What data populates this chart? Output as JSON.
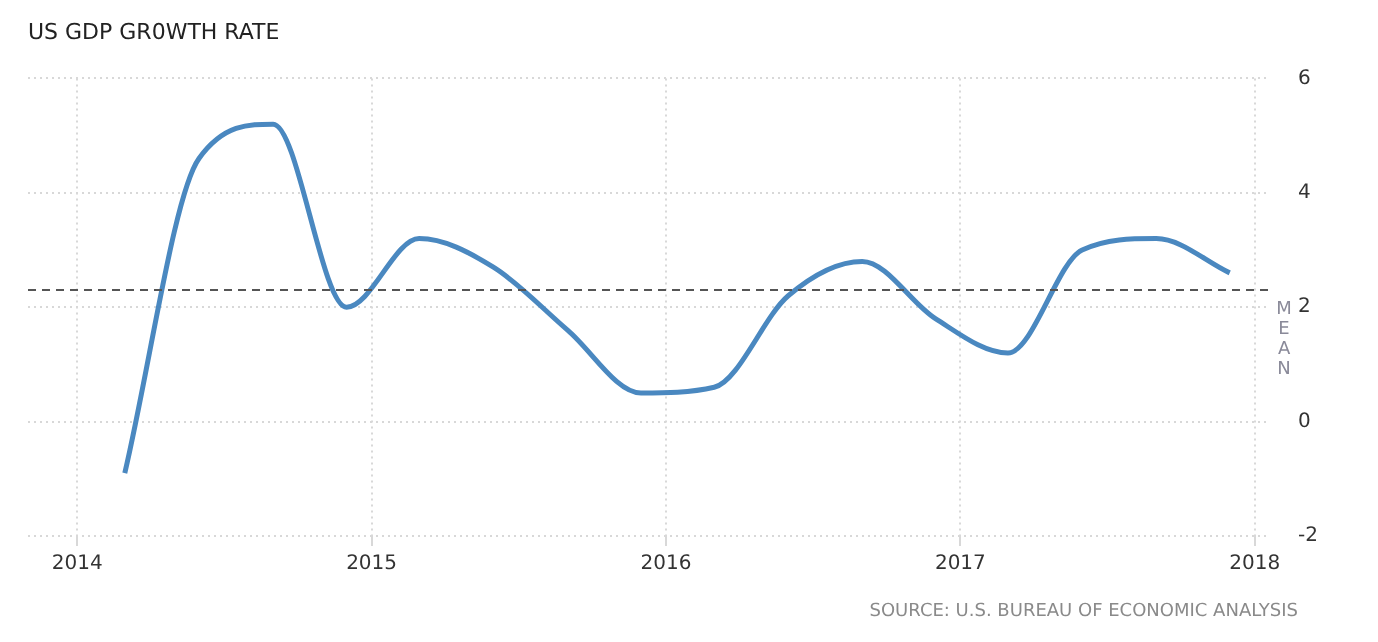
{
  "chart_data": {
    "type": "line",
    "title": "US GDP GR0WTH RATE",
    "x": [
      "2014-03-01",
      "2014-06-01",
      "2014-09-01",
      "2014-12-01",
      "2015-03-01",
      "2015-06-01",
      "2015-09-01",
      "2015-12-01",
      "2016-03-01",
      "2016-06-01",
      "2016-09-01",
      "2016-12-01",
      "2017-03-01",
      "2017-06-01",
      "2017-09-01",
      "2017-12-01"
    ],
    "series": [
      {
        "color": "#4a88c0",
        "values": [
          -0.9,
          4.6,
          5.2,
          2.0,
          3.2,
          2.7,
          1.6,
          0.5,
          0.6,
          2.2,
          2.8,
          1.8,
          1.2,
          3.0,
          3.2,
          2.6
        ]
      }
    ],
    "xlim": [
      "2013-11-01",
      "2018-01-20"
    ],
    "xticks": [
      {
        "value": "2014",
        "label": "2014"
      },
      {
        "value": "2015",
        "label": "2015"
      },
      {
        "value": "2016",
        "label": "2016"
      },
      {
        "value": "2017",
        "label": "2017"
      },
      {
        "value": "2018",
        "label": "2018"
      }
    ],
    "ylim": [
      -2,
      6
    ],
    "yticks": [
      -2,
      0,
      2,
      4,
      6
    ],
    "ref_lines": [
      {
        "axis": "y",
        "value": 2.3,
        "label": "MEAN",
        "color": "#555555",
        "line_style": "dashed"
      }
    ],
    "grid": true,
    "legend": false,
    "marker": "none",
    "line_style": "solid",
    "annotations": [
      "SOURCE: U.S. BUREAU OF ECONOMIC ANALYSIS"
    ]
  }
}
